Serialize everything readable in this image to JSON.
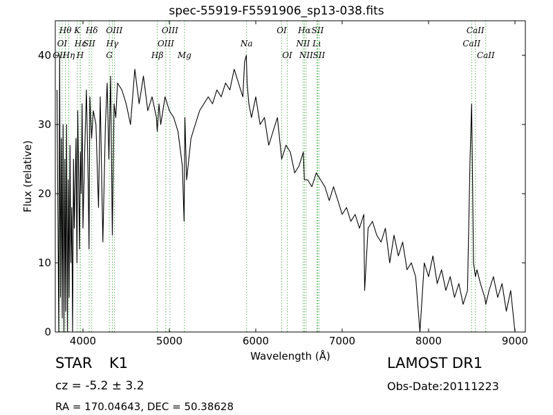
{
  "chart_data": {
    "type": "line",
    "title": "spec-55919-F5591906_sp13-038.fits",
    "xlabel": "Wavelength (Å)",
    "ylabel": "Flux (relative)",
    "xlim": [
      3680,
      9120
    ],
    "ylim": [
      0,
      45
    ],
    "xticks": [
      4000,
      5000,
      6000,
      7000,
      8000,
      9000
    ],
    "yticks": [
      0,
      10,
      20,
      30,
      40
    ],
    "grid": false,
    "series": [
      {
        "color": "#000000",
        "x": [
          3700,
          3720,
          3730,
          3740,
          3750,
          3760,
          3770,
          3780,
          3790,
          3800,
          3810,
          3820,
          3830,
          3840,
          3850,
          3860,
          3870,
          3880,
          3890,
          3900,
          3920,
          3930,
          3940,
          3950,
          3960,
          3970,
          3980,
          3990,
          4000,
          4020,
          4040,
          4060,
          4070,
          4080,
          4100,
          4120,
          4150,
          4180,
          4200,
          4230,
          4260,
          4280,
          4300,
          4320,
          4340,
          4360,
          4380,
          4400,
          4450,
          4500,
          4550,
          4600,
          4650,
          4700,
          4750,
          4800,
          4850,
          4860,
          4880,
          4900,
          4950,
          5000,
          5050,
          5100,
          5150,
          5170,
          5180,
          5200,
          5250,
          5300,
          5350,
          5400,
          5450,
          5500,
          5550,
          5600,
          5650,
          5700,
          5750,
          5800,
          5850,
          5870,
          5890,
          5900,
          5920,
          5950,
          6000,
          6050,
          6100,
          6150,
          6200,
          6250,
          6300,
          6350,
          6400,
          6450,
          6500,
          6550,
          6563,
          6600,
          6650,
          6700,
          6750,
          6800,
          6850,
          6900,
          6950,
          7000,
          7050,
          7100,
          7150,
          7200,
          7250,
          7260,
          7300,
          7350,
          7400,
          7450,
          7500,
          7550,
          7600,
          7650,
          7700,
          7750,
          7800,
          7850,
          7900,
          7950,
          8000,
          8050,
          8100,
          8150,
          8200,
          8250,
          8300,
          8350,
          8400,
          8450,
          8480,
          8498,
          8520,
          8542,
          8560,
          8600,
          8650,
          8662,
          8700,
          8750,
          8800,
          8850,
          8900,
          8950,
          9000
        ],
        "values": [
          35,
          0,
          40,
          5,
          28,
          2,
          30,
          0,
          25,
          3,
          30,
          0,
          22,
          5,
          27,
          10,
          18,
          0,
          25,
          15,
          28,
          10,
          32,
          22,
          12,
          26,
          20,
          33,
          15,
          26,
          35,
          22,
          12,
          34,
          28,
          32,
          30,
          18,
          34,
          13,
          30,
          36,
          25,
          37,
          14,
          33,
          31,
          36,
          35,
          33,
          30,
          38,
          33,
          37,
          32,
          34,
          31,
          29,
          33,
          30,
          34,
          32,
          31,
          29,
          24,
          16,
          31,
          22,
          28,
          30,
          32,
          33,
          34,
          33,
          35,
          34,
          36,
          35,
          38,
          36,
          34,
          39,
          40,
          36,
          33,
          31,
          34,
          30,
          31,
          27,
          29,
          31,
          25,
          27,
          26,
          23,
          24,
          26,
          22,
          22,
          21,
          23,
          22,
          21,
          19,
          21,
          19,
          17,
          18,
          16,
          17,
          15,
          17,
          6,
          15,
          16,
          14,
          13,
          15,
          10,
          14,
          11,
          13,
          9,
          10,
          8,
          0,
          10,
          8,
          11,
          7,
          9,
          6,
          8,
          5,
          7,
          4,
          6,
          25,
          33,
          10,
          8,
          9,
          7,
          5,
          4,
          6,
          8,
          5,
          7,
          3,
          6,
          0
        ]
      }
    ],
    "line_markers": [
      {
        "label": "OII",
        "x": 3727,
        "row": 2
      },
      {
        "label": "Hθ",
        "x": 3797,
        "row": 0
      },
      {
        "label": "Hη",
        "x": 3835,
        "row": 2
      },
      {
        "label": "OI",
        "x": 3759,
        "row": 1
      },
      {
        "label": "K",
        "x": 3934,
        "row": 0
      },
      {
        "label": "Hε",
        "x": 3970,
        "row": 1
      },
      {
        "label": "H",
        "x": 3968,
        "row": 2
      },
      {
        "label": "SII",
        "x": 4072,
        "row": 1
      },
      {
        "label": "Hδ",
        "x": 4102,
        "row": 0
      },
      {
        "label": "OIII",
        "x": 4363,
        "row": 0
      },
      {
        "label": "Hγ",
        "x": 4340,
        "row": 1
      },
      {
        "label": "G",
        "x": 4305,
        "row": 2
      },
      {
        "label": "OIII",
        "x": 5007,
        "row": 0
      },
      {
        "label": "OIII",
        "x": 4959,
        "row": 1
      },
      {
        "label": "Hβ",
        "x": 4861,
        "row": 2
      },
      {
        "label": "Mg",
        "x": 5175,
        "row": 2
      },
      {
        "label": "Na",
        "x": 5894,
        "row": 1
      },
      {
        "label": "OI",
        "x": 6300,
        "row": 0
      },
      {
        "label": "OI",
        "x": 6364,
        "row": 2
      },
      {
        "label": "Hα",
        "x": 6563,
        "row": 0
      },
      {
        "label": "SII",
        "x": 6716,
        "row": 0
      },
      {
        "label": "NII",
        "x": 6548,
        "row": 1
      },
      {
        "label": "Lι",
        "x": 6708,
        "row": 1
      },
      {
        "label": "NII",
        "x": 6583,
        "row": 2
      },
      {
        "label": "SII",
        "x": 6731,
        "row": 2
      },
      {
        "label": "CaII",
        "x": 8542,
        "row": 0
      },
      {
        "label": "CaII",
        "x": 8498,
        "row": 1
      },
      {
        "label": "CaII",
        "x": 8662,
        "row": 2
      }
    ]
  },
  "footer": {
    "class": "STAR",
    "subclass": "K1",
    "survey": "LAMOST DR1",
    "cz": "cz = -5.2 ± 3.2",
    "obs_date": "Obs-Date:20111223",
    "radec": "RA = 170.04643, DEC = 50.38628"
  }
}
